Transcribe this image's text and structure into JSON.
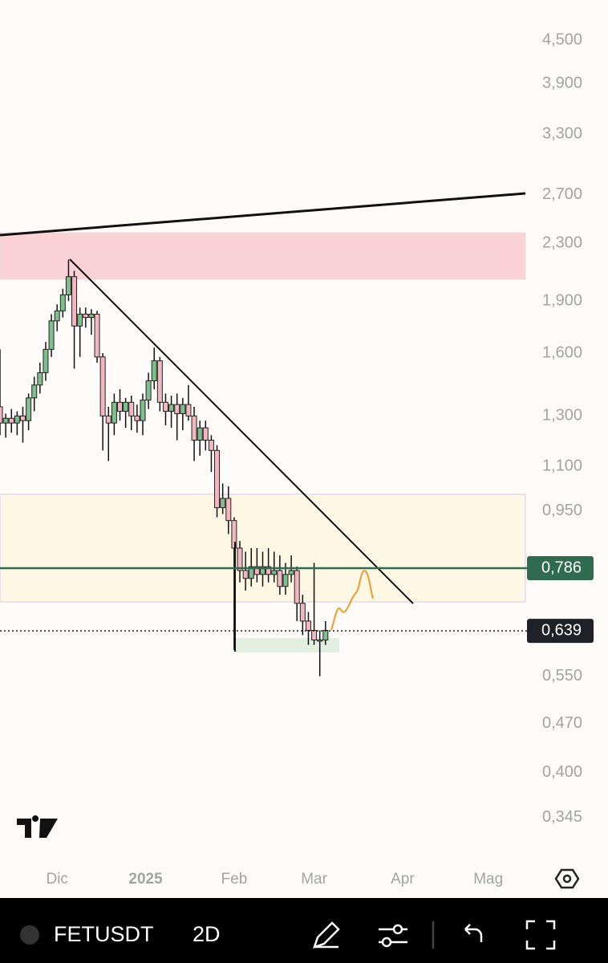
{
  "chart_data": {
    "type": "candlestick",
    "log_scale": true,
    "ylim": [
      0.297,
      5.14
    ],
    "yticks": [
      {
        "value": 4.5,
        "label": "4,500"
      },
      {
        "value": 3.9,
        "label": "3,900"
      },
      {
        "value": 3.3,
        "label": "3,300"
      },
      {
        "value": 2.7,
        "label": "2,700"
      },
      {
        "value": 2.3,
        "label": "2,300"
      },
      {
        "value": 1.9,
        "label": "1,900"
      },
      {
        "value": 1.6,
        "label": "1,600"
      },
      {
        "value": 1.3,
        "label": "1,300"
      },
      {
        "value": 1.1,
        "label": "1,100"
      },
      {
        "value": 0.95,
        "label": "0,950"
      },
      {
        "value": 0.55,
        "label": "0,550"
      },
      {
        "value": 0.47,
        "label": "0,470"
      },
      {
        "value": 0.4,
        "label": "0,400"
      },
      {
        "value": 0.345,
        "label": "0,345"
      }
    ],
    "xlim": [
      -20,
      164
    ],
    "xticks": [
      {
        "value": 0,
        "label": "Dic"
      },
      {
        "value": 31,
        "label": "2025"
      },
      {
        "value": 62,
        "label": "Feb"
      },
      {
        "value": 90,
        "label": "Mar"
      },
      {
        "value": 121,
        "label": "Apr"
      },
      {
        "value": 151,
        "label": "Mag"
      }
    ],
    "up_color": "#7fbf8e",
    "down_color": "#f2b8c2",
    "x": [
      -20,
      -18,
      -16,
      -14,
      -12,
      -10,
      -8,
      -6,
      -4,
      -2,
      0,
      2,
      4,
      6,
      8,
      10,
      12,
      14,
      16,
      18,
      20,
      22,
      24,
      26,
      28,
      30,
      32,
      34,
      36,
      38,
      40,
      42,
      44,
      46,
      48,
      50,
      52,
      54,
      56,
      58,
      60,
      62,
      64,
      66,
      68,
      70,
      72,
      74,
      76,
      78,
      80,
      82,
      84,
      86,
      88,
      90,
      92,
      94
    ],
    "open": [
      1.34,
      1.27,
      1.29,
      1.27,
      1.3,
      1.28,
      1.38,
      1.44,
      1.5,
      1.62,
      1.78,
      1.84,
      1.94,
      2.06,
      1.75,
      1.82,
      1.8,
      1.82,
      1.58,
      1.3,
      1.27,
      1.36,
      1.32,
      1.36,
      1.3,
      1.28,
      1.37,
      1.46,
      1.56,
      1.36,
      1.32,
      1.35,
      1.31,
      1.35,
      1.3,
      1.2,
      1.25,
      1.2,
      1.16,
      0.96,
      0.99,
      0.92,
      0.84,
      0.78,
      0.76,
      0.79,
      0.77,
      0.79,
      0.77,
      0.78,
      0.74,
      0.77,
      0.78,
      0.7,
      0.66,
      0.64,
      0.62,
      0.62
    ],
    "high": [
      1.62,
      1.31,
      1.33,
      1.32,
      1.34,
      1.4,
      1.48,
      1.55,
      1.66,
      1.82,
      1.88,
      1.98,
      2.18,
      2.1,
      1.86,
      1.86,
      1.85,
      1.84,
      1.6,
      1.34,
      1.4,
      1.42,
      1.38,
      1.39,
      1.35,
      1.4,
      1.5,
      1.63,
      1.58,
      1.4,
      1.39,
      1.4,
      1.38,
      1.44,
      1.34,
      1.28,
      1.28,
      1.22,
      1.18,
      1.04,
      1.03,
      0.93,
      0.86,
      0.83,
      0.84,
      0.84,
      0.83,
      0.84,
      0.83,
      0.82,
      0.8,
      0.82,
      0.79,
      0.72,
      0.68,
      0.8,
      0.64,
      0.66
    ],
    "low": [
      1.22,
      1.21,
      1.23,
      1.22,
      1.19,
      1.24,
      1.32,
      1.4,
      1.46,
      1.58,
      1.72,
      1.8,
      1.9,
      1.52,
      1.58,
      1.74,
      1.7,
      1.55,
      1.16,
      1.12,
      1.22,
      1.28,
      1.25,
      1.24,
      1.23,
      1.22,
      1.33,
      1.42,
      1.32,
      1.26,
      1.25,
      1.2,
      1.24,
      1.28,
      1.12,
      1.14,
      1.16,
      1.08,
      0.93,
      0.94,
      0.88,
      0.6,
      0.75,
      0.73,
      0.74,
      0.75,
      0.74,
      0.75,
      0.75,
      0.72,
      0.72,
      0.75,
      0.66,
      0.63,
      0.61,
      0.61,
      0.55,
      0.61
    ],
    "close": [
      1.27,
      1.29,
      1.27,
      1.3,
      1.28,
      1.38,
      1.44,
      1.5,
      1.62,
      1.78,
      1.84,
      1.94,
      2.06,
      1.75,
      1.82,
      1.8,
      1.82,
      1.58,
      1.3,
      1.27,
      1.36,
      1.32,
      1.36,
      1.3,
      1.28,
      1.37,
      1.46,
      1.56,
      1.36,
      1.32,
      1.35,
      1.31,
      1.35,
      1.3,
      1.2,
      1.25,
      1.2,
      1.16,
      0.96,
      0.99,
      0.92,
      0.84,
      0.78,
      0.76,
      0.79,
      0.77,
      0.79,
      0.77,
      0.78,
      0.74,
      0.77,
      0.78,
      0.7,
      0.66,
      0.64,
      0.62,
      0.62,
      0.64
    ],
    "price_lines": [
      {
        "value": 0.786,
        "label": "0,786",
        "color": "#2e6b4f",
        "style": "solid"
      },
      {
        "value": 0.639,
        "label": "0,639",
        "color": "#1e2226",
        "style": "dotted"
      }
    ]
  },
  "toolbar": {
    "symbol": "FETUSDT",
    "interval": "2D"
  }
}
